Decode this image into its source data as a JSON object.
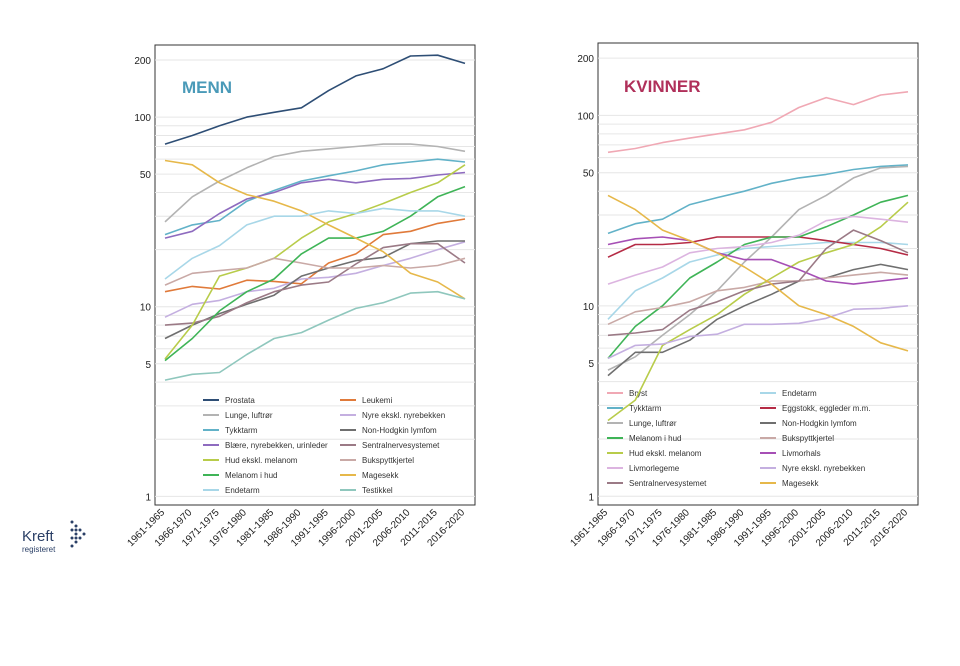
{
  "logo": {
    "line1": "Kreft",
    "line2": "registeret"
  },
  "chart_data": [
    {
      "type": "line",
      "title": "MENN",
      "title_color": "#4a9ab8",
      "yscale": "log",
      "ylim": [
        0.9,
        240
      ],
      "yticks": [
        1,
        5,
        10,
        50,
        100,
        200
      ],
      "categories": [
        "1961-1965",
        "1966-1970",
        "1971-1975",
        "1976-1980",
        "1981-1985",
        "1986-1990",
        "1991-1995",
        "1996-2000",
        "2001-2005",
        "2006-2010",
        "2011-2015",
        "2016-2020"
      ],
      "series": [
        {
          "name": "Prostata",
          "color": "#2e4e75",
          "values": [
            72,
            80,
            90,
            100,
            106,
            112,
            138,
            165,
            180,
            210,
            212,
            192
          ]
        },
        {
          "name": "Leukemi",
          "color": "#e07a3a",
          "values": [
            12,
            12.8,
            12.4,
            13.8,
            13.6,
            13.2,
            17,
            19,
            24,
            25,
            27.5,
            29
          ]
        },
        {
          "name": "Lunge, luftrør",
          "color": "#b3b3b3",
          "values": [
            28,
            38,
            46,
            54,
            62,
            66,
            68,
            70,
            72,
            72,
            70,
            66
          ]
        },
        {
          "name": "Nyre ekskl. nyrebekken",
          "color": "#c4afe0",
          "values": [
            8.8,
            10.3,
            10.8,
            12,
            12.5,
            14,
            14.3,
            15,
            16.5,
            18,
            20,
            22
          ]
        },
        {
          "name": "Tykktarm",
          "color": "#62b2c8",
          "values": [
            24,
            27,
            28.5,
            36,
            41,
            46,
            49,
            52,
            56,
            58,
            60,
            58
          ]
        },
        {
          "name": "Non-Hodgkin lymfom",
          "color": "#6f6f6f",
          "values": [
            6.8,
            8,
            9.2,
            10.3,
            11.5,
            14.5,
            16,
            17.5,
            18.2,
            21.5,
            22.2,
            22.2
          ]
        },
        {
          "name": "Blære, nyrebekken, urinleder",
          "color": "#8e6bbf",
          "values": [
            23,
            25,
            31,
            37,
            40,
            45,
            47,
            45,
            47,
            47.5,
            49.5,
            51
          ]
        },
        {
          "name": "Sentralnervesystemet",
          "color": "#9b7a86",
          "values": [
            8,
            8.2,
            8.9,
            10.5,
            12,
            13,
            13.5,
            16.8,
            20.5,
            21.5,
            21.5,
            17
          ]
        },
        {
          "name": "Hud ekskl. melanom",
          "color": "#b8cc4a",
          "values": [
            5.3,
            8,
            14.5,
            16,
            18,
            23,
            28,
            31,
            35,
            40,
            45,
            56
          ]
        },
        {
          "name": "Bukspyttkjertel",
          "color": "#c9a9a6",
          "values": [
            13,
            15,
            15.5,
            16,
            18,
            17,
            16,
            16,
            16.5,
            16,
            16.5,
            18
          ]
        },
        {
          "name": "Melanom i hud",
          "color": "#3fb457",
          "values": [
            5.2,
            6.8,
            9.5,
            12,
            14,
            19,
            23,
            23,
            25,
            30,
            38,
            43
          ]
        },
        {
          "name": "Magesekk",
          "color": "#e6b84a",
          "values": [
            59,
            56,
            45,
            39,
            36,
            32,
            27,
            23,
            19.5,
            15,
            13.5,
            11
          ]
        },
        {
          "name": "Endetarm",
          "color": "#a8d7e8",
          "values": [
            14,
            18,
            21,
            27,
            30,
            30,
            32,
            31,
            33,
            32,
            32,
            30
          ]
        },
        {
          "name": "Testikkel",
          "color": "#8fc7bd",
          "values": [
            4.1,
            4.4,
            4.5,
            5.6,
            6.8,
            7.3,
            8.5,
            9.8,
            10.5,
            11.8,
            12,
            11
          ]
        }
      ]
    },
    {
      "type": "line",
      "title": "KVINNER",
      "title_color": "#b0305a",
      "yscale": "log",
      "ylim": [
        0.9,
        240
      ],
      "yticks": [
        1,
        5,
        10,
        50,
        100,
        200
      ],
      "categories": [
        "1961-1965",
        "1966-1970",
        "1971-1975",
        "1976-1980",
        "1981-1985",
        "1986-1990",
        "1991-1995",
        "1996-2000",
        "2001-2005",
        "2006-2010",
        "2011-2015",
        "2016-2020"
      ],
      "series": [
        {
          "name": "Bryst",
          "color": "#f0a8b4",
          "values": [
            64,
            67,
            72,
            76,
            80,
            84,
            92,
            110,
            124,
            114,
            128,
            133
          ]
        },
        {
          "name": "Endetarm",
          "color": "#a8d7e8",
          "values": [
            8.5,
            12,
            14,
            17,
            18.5,
            20,
            20.5,
            21,
            21.5,
            21.5,
            21.5,
            21
          ]
        },
        {
          "name": "Tykktarm",
          "color": "#62b2c8",
          "values": [
            24,
            27,
            28.5,
            34,
            37,
            40,
            44,
            47,
            49,
            52,
            54,
            55
          ]
        },
        {
          "name": "Eggstokk, eggleder m.m.",
          "color": "#b52b45",
          "values": [
            18,
            21,
            21,
            21.5,
            23,
            23,
            23,
            23,
            22,
            21,
            20,
            18.5
          ]
        },
        {
          "name": "Lunge, luftrør",
          "color": "#b3b3b3",
          "values": [
            4.6,
            5.4,
            7,
            9,
            12,
            17,
            23,
            32,
            38,
            47,
            53,
            54
          ]
        },
        {
          "name": "Non-Hodgkin lymfom",
          "color": "#6f6f6f",
          "values": [
            4.3,
            5.7,
            5.7,
            6.6,
            8.5,
            10,
            11.5,
            13.5,
            14,
            15.5,
            16.5,
            15.5
          ]
        },
        {
          "name": "Melanom i hud",
          "color": "#3fb457",
          "values": [
            5.3,
            7.8,
            10,
            14,
            17,
            21,
            23,
            23,
            26,
            30,
            35,
            38
          ]
        },
        {
          "name": "Bukspyttkjertel",
          "color": "#c9a9a6",
          "values": [
            8,
            9.3,
            9.8,
            10.5,
            12,
            12.5,
            13.5,
            13.5,
            14,
            14.5,
            15,
            14.5
          ]
        },
        {
          "name": "Hud ekskl. melanom",
          "color": "#b8cc4a",
          "values": [
            2.5,
            3.2,
            6.2,
            7.5,
            9,
            11.5,
            14,
            17,
            19,
            21,
            26,
            35
          ]
        },
        {
          "name": "Livmorhals",
          "color": "#a64fb5",
          "values": [
            21,
            22.5,
            23,
            22,
            19,
            17.5,
            17.5,
            15.5,
            13.5,
            13,
            13.5,
            14
          ]
        },
        {
          "name": "Livmorlegeme",
          "color": "#dcb4e0",
          "values": [
            13,
            14.5,
            16,
            19,
            20,
            20.5,
            21.5,
            23.5,
            28,
            29.5,
            28.5,
            27.5
          ]
        },
        {
          "name": "Nyre ekskl. nyrebekken",
          "color": "#c4afe0",
          "values": [
            5.3,
            6.2,
            6.3,
            6.9,
            7.1,
            8,
            8,
            8.1,
            8.6,
            9.6,
            9.7,
            10
          ]
        },
        {
          "name": "Sentralnervesystemet",
          "color": "#9b7a86",
          "values": [
            7,
            7.2,
            7.5,
            9.5,
            10.5,
            12,
            13,
            13.5,
            20,
            25,
            22,
            19
          ]
        },
        {
          "name": "Magesekk",
          "color": "#e6b84a",
          "values": [
            38,
            32,
            25,
            22,
            19,
            16,
            13,
            10,
            9,
            7.8,
            6.4,
            5.8
          ]
        }
      ]
    }
  ]
}
